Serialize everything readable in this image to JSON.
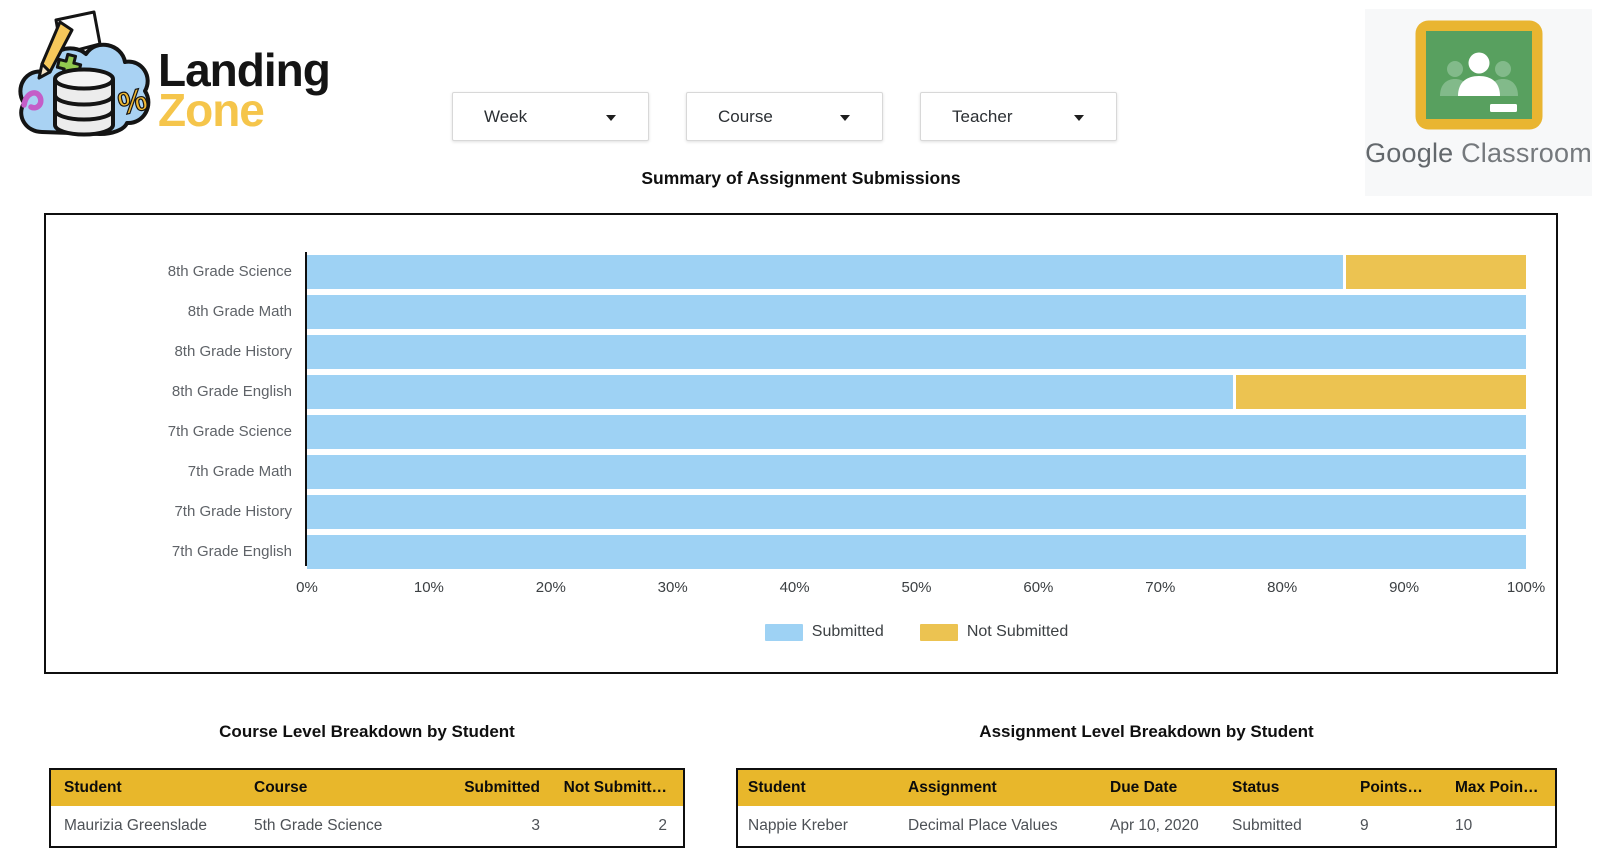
{
  "header": {
    "logo": {
      "word1": "Landing",
      "word2": "Zone"
    },
    "filters": [
      {
        "label": "Week"
      },
      {
        "label": "Course"
      },
      {
        "label": "Teacher"
      }
    ],
    "classroom": {
      "brand": "Google",
      "product": "Classroom"
    }
  },
  "chart_title": "Summary of Assignment Submissions",
  "chart_data": {
    "type": "bar",
    "orientation": "horizontal",
    "stacked": true,
    "unit": "percent",
    "title": "Summary of Assignment Submissions",
    "categories": [
      "8th Grade Science",
      "8th Grade Math",
      "8th Grade History",
      "8th Grade English",
      "7th Grade Science",
      "7th Grade Math",
      "7th Grade History",
      "7th Grade English"
    ],
    "series": [
      {
        "name": "Submitted",
        "color": "#9ED2F4",
        "values": [
          85,
          100,
          100,
          76,
          100,
          100,
          100,
          100
        ]
      },
      {
        "name": "Not Submitted",
        "color": "#ECC351",
        "values": [
          15,
          0,
          0,
          24,
          0,
          0,
          0,
          0
        ]
      }
    ],
    "x_ticks": [
      "0%",
      "10%",
      "20%",
      "30%",
      "40%",
      "50%",
      "60%",
      "70%",
      "80%",
      "90%",
      "100%"
    ],
    "xlim": [
      0,
      100
    ],
    "legend_position": "bottom"
  },
  "tables": [
    {
      "title": "Course Level Breakdown by Student",
      "columns": [
        "Student",
        "Course",
        "Submitted",
        "Not Submitt…"
      ],
      "rows": [
        [
          "Maurizia Greenslade",
          "5th Grade Science",
          "3",
          "2"
        ]
      ]
    },
    {
      "title": "Assignment Level Breakdown by Student",
      "columns": [
        "Student",
        "Assignment",
        "Due Date",
        "Status",
        "Points…",
        "Max Poin…"
      ],
      "rows": [
        [
          "Nappie Kreber",
          "Decimal Place Values",
          "Apr 10, 2020",
          "Submitted",
          "9",
          "10"
        ]
      ]
    }
  ],
  "colors": {
    "bar_submitted": "#9ED2F4",
    "bar_not_submitted": "#ECC351",
    "table_header": "#E8B72B",
    "logo_gold": "#F5C54B",
    "classroom_frame_gold": "#E9B531",
    "classroom_board_green": "#58A05F"
  }
}
